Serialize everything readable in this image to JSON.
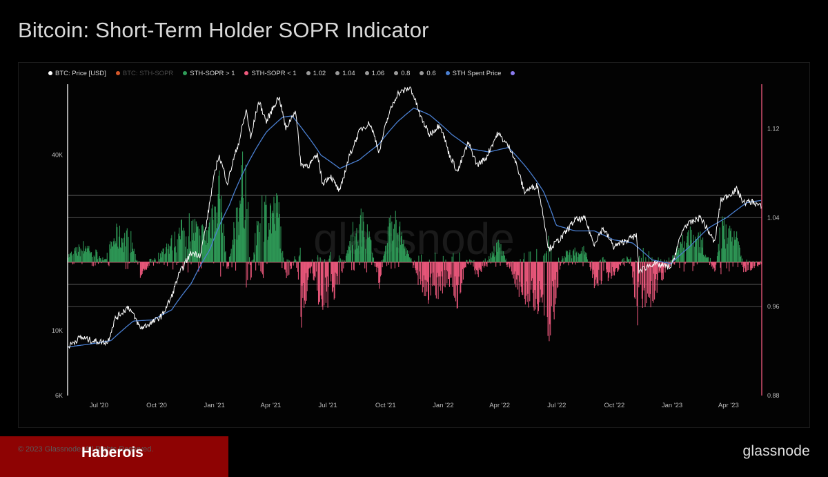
{
  "page": {
    "title": "Bitcoin: Short-Term Holder SOPR Indicator"
  },
  "legend": [
    {
      "label": "BTC: Price [USD]",
      "color": "#ffffff",
      "dim": false
    },
    {
      "label": "BTC: STH-SOPR",
      "color": "#d4572a",
      "dim": true
    },
    {
      "label": "STH-SOPR > 1",
      "color": "#2f9c58",
      "dim": false
    },
    {
      "label": "STH-SOPR < 1",
      "color": "#f05a7e",
      "dim": false
    },
    {
      "label": "1.02",
      "color": "#9a9a9a",
      "dim": false
    },
    {
      "label": "1.04",
      "color": "#9a9a9a",
      "dim": false
    },
    {
      "label": "1.06",
      "color": "#9a9a9a",
      "dim": false
    },
    {
      "label": "0.8",
      "color": "#9a9a9a",
      "dim": false
    },
    {
      "label": "0.6",
      "color": "#9a9a9a",
      "dim": false
    },
    {
      "label": "STH Spent Price",
      "color": "#4a7fd1",
      "dim": false
    },
    {
      "label": "",
      "color": "#8b7cf0",
      "dim": false
    }
  ],
  "watermark": "glassnode",
  "footer": {
    "copyright": "© 2023 Glassnode. All Rights Reserved.",
    "brand_label": "Haberois",
    "logo": "glassnode"
  },
  "colors": {
    "price": "#ffffff",
    "sopr_above": "#2f9c58",
    "sopr_below": "#f05a7e",
    "level": "#9a9a9a",
    "sth_price": "#4a7fd1",
    "left_axis_line": "#ffffff",
    "right_axis_line": "#f05a7e"
  },
  "chart_data": {
    "type": "line",
    "x_range": [
      "2020-05-12",
      "2023-05-24"
    ],
    "x_ticks": [
      {
        "date": "2020-07-01",
        "label": "Jul '20"
      },
      {
        "date": "2020-10-01",
        "label": "Oct '20"
      },
      {
        "date": "2021-01-01",
        "label": "Jan '21"
      },
      {
        "date": "2021-04-01",
        "label": "Apr '21"
      },
      {
        "date": "2021-07-01",
        "label": "Jul '21"
      },
      {
        "date": "2021-10-01",
        "label": "Oct '21"
      },
      {
        "date": "2022-01-01",
        "label": "Jan '22"
      },
      {
        "date": "2022-04-01",
        "label": "Apr '22"
      },
      {
        "date": "2022-07-01",
        "label": "Jul '22"
      },
      {
        "date": "2022-10-01",
        "label": "Oct '22"
      },
      {
        "date": "2023-01-01",
        "label": "Jan '23"
      },
      {
        "date": "2023-04-01",
        "label": "Apr '23"
      }
    ],
    "left_axis": {
      "scale": "log",
      "range": [
        6000,
        70000
      ],
      "ticks": [
        {
          "value": 6000,
          "label": "6K"
        },
        {
          "value": 10000,
          "label": "10K"
        },
        {
          "value": 40000,
          "label": "40K"
        }
      ]
    },
    "right_axis": {
      "scale": "linear",
      "range": [
        0.88,
        1.16
      ],
      "ticks": [
        {
          "value": 0.88,
          "label": "0.88"
        },
        {
          "value": 0.96,
          "label": "0.96"
        },
        {
          "value": 1.04,
          "label": "1.04"
        },
        {
          "value": 1.12,
          "label": "1.12"
        }
      ]
    },
    "reference_lines": [
      1.06,
      1.04,
      1.0,
      0.98,
      0.96
    ],
    "price_series": [
      [
        "2020-05-12",
        8800
      ],
      [
        "2020-06-01",
        9500
      ],
      [
        "2020-06-25",
        9200
      ],
      [
        "2020-07-15",
        9150
      ],
      [
        "2020-07-27",
        11000
      ],
      [
        "2020-08-17",
        12100
      ],
      [
        "2020-09-05",
        10200
      ],
      [
        "2020-09-25",
        10700
      ],
      [
        "2020-10-10",
        11300
      ],
      [
        "2020-10-25",
        13100
      ],
      [
        "2020-11-05",
        15500
      ],
      [
        "2020-11-25",
        18500
      ],
      [
        "2020-12-10",
        18200
      ],
      [
        "2020-12-20",
        23500
      ],
      [
        "2021-01-08",
        40000
      ],
      [
        "2021-01-22",
        32000
      ],
      [
        "2021-02-10",
        45000
      ],
      [
        "2021-02-21",
        57000
      ],
      [
        "2021-02-28",
        45500
      ],
      [
        "2021-03-13",
        61000
      ],
      [
        "2021-03-25",
        52000
      ],
      [
        "2021-04-14",
        63500
      ],
      [
        "2021-04-25",
        49000
      ],
      [
        "2021-05-10",
        57000
      ],
      [
        "2021-05-19",
        37000
      ],
      [
        "2021-06-01",
        37000
      ],
      [
        "2021-06-15",
        40000
      ],
      [
        "2021-06-22",
        32000
      ],
      [
        "2021-07-05",
        34000
      ],
      [
        "2021-07-20",
        29800
      ],
      [
        "2021-08-05",
        40000
      ],
      [
        "2021-08-22",
        49000
      ],
      [
        "2021-09-06",
        51500
      ],
      [
        "2021-09-21",
        41000
      ],
      [
        "2021-10-06",
        55000
      ],
      [
        "2021-10-20",
        65000
      ],
      [
        "2021-11-10",
        68000
      ],
      [
        "2021-11-26",
        54000
      ],
      [
        "2021-12-10",
        47000
      ],
      [
        "2021-12-27",
        51000
      ],
      [
        "2022-01-10",
        40500
      ],
      [
        "2022-01-24",
        35000
      ],
      [
        "2022-02-10",
        44000
      ],
      [
        "2022-02-24",
        37000
      ],
      [
        "2022-03-10",
        39000
      ],
      [
        "2022-03-29",
        47500
      ],
      [
        "2022-04-20",
        41500
      ],
      [
        "2022-05-10",
        30000
      ],
      [
        "2022-05-31",
        31500
      ],
      [
        "2022-06-13",
        22500
      ],
      [
        "2022-06-18",
        19000
      ],
      [
        "2022-07-10",
        21000
      ],
      [
        "2022-07-30",
        24000
      ],
      [
        "2022-08-15",
        24200
      ],
      [
        "2022-08-29",
        19800
      ],
      [
        "2022-09-13",
        22500
      ],
      [
        "2022-09-30",
        19400
      ],
      [
        "2022-10-25",
        20700
      ],
      [
        "2022-11-05",
        21200
      ],
      [
        "2022-11-09",
        16000
      ],
      [
        "2022-12-01",
        17000
      ],
      [
        "2022-12-31",
        16500
      ],
      [
        "2023-01-20",
        22700
      ],
      [
        "2023-02-15",
        24500
      ],
      [
        "2023-03-10",
        20000
      ],
      [
        "2023-03-20",
        28000
      ],
      [
        "2023-04-14",
        30500
      ],
      [
        "2023-04-25",
        27500
      ],
      [
        "2023-05-10",
        27700
      ],
      [
        "2023-05-24",
        26500
      ]
    ],
    "sth_spent_price_series": [
      [
        "2020-05-12",
        8800
      ],
      [
        "2020-06-15",
        9000
      ],
      [
        "2020-07-20",
        9250
      ],
      [
        "2020-08-25",
        10800
      ],
      [
        "2020-09-25",
        10900
      ],
      [
        "2020-10-25",
        11800
      ],
      [
        "2020-11-25",
        14500
      ],
      [
        "2020-12-25",
        19000
      ],
      [
        "2021-01-25",
        27000
      ],
      [
        "2021-02-25",
        38000
      ],
      [
        "2021-03-25",
        48000
      ],
      [
        "2021-04-20",
        54000
      ],
      [
        "2021-05-05",
        54500
      ],
      [
        "2021-05-25",
        48000
      ],
      [
        "2021-06-20",
        40000
      ],
      [
        "2021-07-20",
        36000
      ],
      [
        "2021-08-20",
        38500
      ],
      [
        "2021-09-20",
        43500
      ],
      [
        "2021-10-20",
        52000
      ],
      [
        "2021-11-15",
        58000
      ],
      [
        "2021-12-10",
        55000
      ],
      [
        "2022-01-15",
        47000
      ],
      [
        "2022-02-15",
        42000
      ],
      [
        "2022-03-15",
        41000
      ],
      [
        "2022-04-15",
        42500
      ],
      [
        "2022-05-15",
        36000
      ],
      [
        "2022-06-10",
        30000
      ],
      [
        "2022-06-30",
        23000
      ],
      [
        "2022-07-30",
        22000
      ],
      [
        "2022-08-30",
        22000
      ],
      [
        "2022-09-30",
        20500
      ],
      [
        "2022-10-30",
        20000
      ],
      [
        "2022-11-30",
        17500
      ],
      [
        "2022-12-30",
        17000
      ],
      [
        "2023-01-30",
        19500
      ],
      [
        "2023-02-28",
        22500
      ],
      [
        "2023-03-30",
        24500
      ],
      [
        "2023-04-30",
        27500
      ],
      [
        "2023-05-24",
        28000
      ]
    ],
    "sopr_envelope": [
      [
        "2020-05-12",
        1.008
      ],
      [
        "2020-06-10",
        1.022
      ],
      [
        "2020-07-10",
        1.004
      ],
      [
        "2020-07-28",
        1.035
      ],
      [
        "2020-08-20",
        1.032
      ],
      [
        "2020-09-05",
        0.985
      ],
      [
        "2020-10-20",
        1.022
      ],
      [
        "2020-11-20",
        1.048
      ],
      [
        "2020-12-20",
        1.035
      ],
      [
        "2021-01-08",
        1.11
      ],
      [
        "2021-01-22",
        0.985
      ],
      [
        "2021-02-10",
        1.085
      ],
      [
        "2021-02-21",
        1.12
      ],
      [
        "2021-02-28",
        0.975
      ],
      [
        "2021-03-13",
        1.07
      ],
      [
        "2021-04-14",
        1.065
      ],
      [
        "2021-04-25",
        0.97
      ],
      [
        "2021-05-10",
        1.01
      ],
      [
        "2021-05-19",
        0.935
      ],
      [
        "2021-06-05",
        0.99
      ],
      [
        "2021-06-22",
        0.945
      ],
      [
        "2021-07-20",
        0.975
      ],
      [
        "2021-08-10",
        1.04
      ],
      [
        "2021-08-25",
        1.05
      ],
      [
        "2021-09-06",
        1.03
      ],
      [
        "2021-09-21",
        0.975
      ],
      [
        "2021-10-10",
        1.06
      ],
      [
        "2021-10-20",
        1.045
      ],
      [
        "2021-11-26",
        0.97
      ],
      [
        "2021-12-10",
        0.96
      ],
      [
        "2022-01-10",
        0.975
      ],
      [
        "2022-01-24",
        0.955
      ],
      [
        "2022-02-10",
        1.01
      ],
      [
        "2022-02-24",
        0.98
      ],
      [
        "2022-03-29",
        1.025
      ],
      [
        "2022-05-10",
        0.955
      ],
      [
        "2022-06-13",
        0.95
      ],
      [
        "2022-06-18",
        0.905
      ],
      [
        "2022-07-10",
        1.01
      ],
      [
        "2022-08-15",
        1.018
      ],
      [
        "2022-08-29",
        0.975
      ],
      [
        "2022-09-30",
        0.985
      ],
      [
        "2022-10-25",
        1.01
      ],
      [
        "2022-11-09",
        0.93
      ],
      [
        "2022-12-15",
        0.98
      ],
      [
        "2023-01-20",
        1.035
      ],
      [
        "2023-02-15",
        1.03
      ],
      [
        "2023-03-10",
        0.985
      ],
      [
        "2023-03-20",
        1.045
      ],
      [
        "2023-04-14",
        1.035
      ],
      [
        "2023-04-25",
        0.99
      ],
      [
        "2023-05-24",
        0.995
      ]
    ]
  }
}
